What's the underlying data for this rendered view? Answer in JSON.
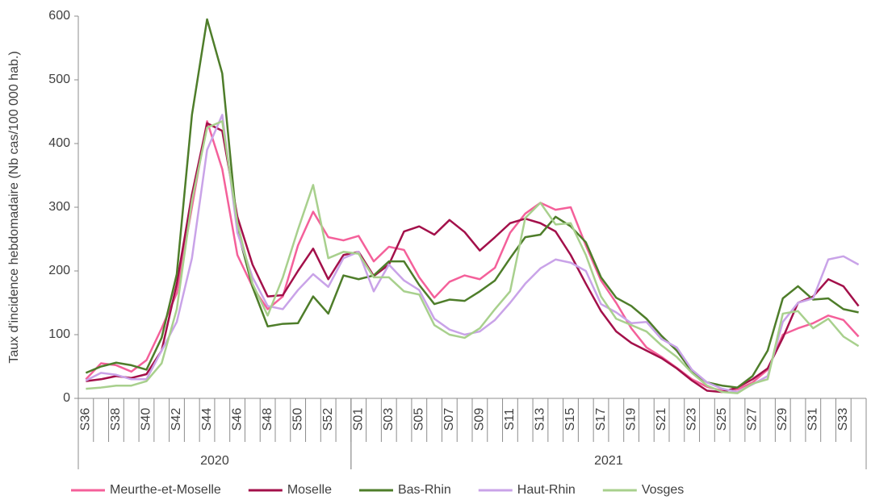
{
  "chart_data": {
    "type": "line",
    "y_label": "Taux d'incidence hebdomadaire (Nb cas/100 000 hab.)",
    "groups": [
      {
        "label": "2020",
        "categories": [
          "S36",
          null,
          "S38",
          null,
          "S40",
          null,
          "S42",
          null,
          "S44",
          null,
          "S46",
          null,
          "S48",
          null,
          "S50",
          null,
          "S52",
          null
        ]
      },
      {
        "label": "2021",
        "categories": [
          "S01",
          null,
          "S03",
          null,
          "S05",
          null,
          "S07",
          null,
          "S09",
          null,
          "S11",
          null,
          "S13",
          null,
          "S15",
          null,
          "S17",
          null,
          "S19",
          null,
          "S21",
          null,
          "S23",
          null,
          "S25",
          null,
          "S27",
          null,
          "S29",
          null,
          "S31",
          null,
          "S33",
          null
        ]
      }
    ],
    "ylim": [
      0,
      600
    ],
    "yticks": [
      0,
      100,
      200,
      300,
      400,
      500,
      600
    ],
    "series": [
      {
        "name": "Meurthe-et-Moselle",
        "color": "#f4609a",
        "values": [
          30,
          55,
          52,
          42,
          60,
          110,
          165,
          300,
          435,
          360,
          225,
          175,
          140,
          160,
          240,
          293,
          253,
          248,
          255,
          215,
          238,
          233,
          190,
          158,
          183,
          193,
          187,
          205,
          260,
          290,
          307,
          296,
          300,
          240,
          185,
          150,
          110,
          80,
          65,
          48,
          30,
          18,
          12,
          14,
          25,
          45,
          100,
          110,
          118,
          130,
          123,
          97
        ]
      },
      {
        "name": "Moselle",
        "color": "#a3104a",
        "values": [
          27,
          30,
          35,
          32,
          38,
          75,
          180,
          320,
          432,
          420,
          285,
          210,
          160,
          162,
          200,
          235,
          187,
          225,
          230,
          192,
          210,
          262,
          270,
          257,
          280,
          261,
          232,
          253,
          275,
          282,
          275,
          262,
          225,
          180,
          137,
          105,
          87,
          75,
          63,
          47,
          28,
          12,
          10,
          17,
          30,
          47,
          95,
          150,
          160,
          187,
          176,
          145
        ]
      },
      {
        "name": "Bas-Rhin",
        "color": "#4e7d2a",
        "values": [
          40,
          50,
          56,
          52,
          45,
          95,
          195,
          445,
          595,
          510,
          265,
          175,
          113,
          117,
          118,
          160,
          133,
          193,
          187,
          193,
          215,
          215,
          178,
          148,
          155,
          153,
          168,
          185,
          220,
          253,
          257,
          285,
          270,
          245,
          190,
          158,
          145,
          125,
          98,
          75,
          42,
          25,
          20,
          17,
          35,
          75,
          157,
          176,
          155,
          157,
          140,
          135
        ]
      },
      {
        "name": "Haut-Rhin",
        "color": "#c9a3e8",
        "values": [
          28,
          40,
          37,
          30,
          30,
          75,
          120,
          220,
          390,
          445,
          260,
          190,
          145,
          140,
          170,
          195,
          175,
          220,
          230,
          168,
          210,
          185,
          170,
          125,
          108,
          100,
          105,
          123,
          150,
          180,
          204,
          218,
          213,
          200,
          148,
          135,
          118,
          120,
          93,
          80,
          45,
          25,
          15,
          10,
          22,
          35,
          120,
          150,
          157,
          218,
          223,
          210
        ]
      },
      {
        "name": "Vosges",
        "color": "#a8d08d",
        "values": [
          15,
          17,
          20,
          20,
          27,
          55,
          140,
          310,
          425,
          435,
          275,
          180,
          130,
          190,
          265,
          335,
          220,
          230,
          227,
          190,
          190,
          168,
          163,
          115,
          100,
          95,
          110,
          140,
          168,
          283,
          307,
          273,
          275,
          225,
          160,
          125,
          115,
          105,
          83,
          65,
          40,
          20,
          10,
          8,
          23,
          30,
          133,
          137,
          110,
          125,
          97,
          82
        ]
      }
    ]
  }
}
